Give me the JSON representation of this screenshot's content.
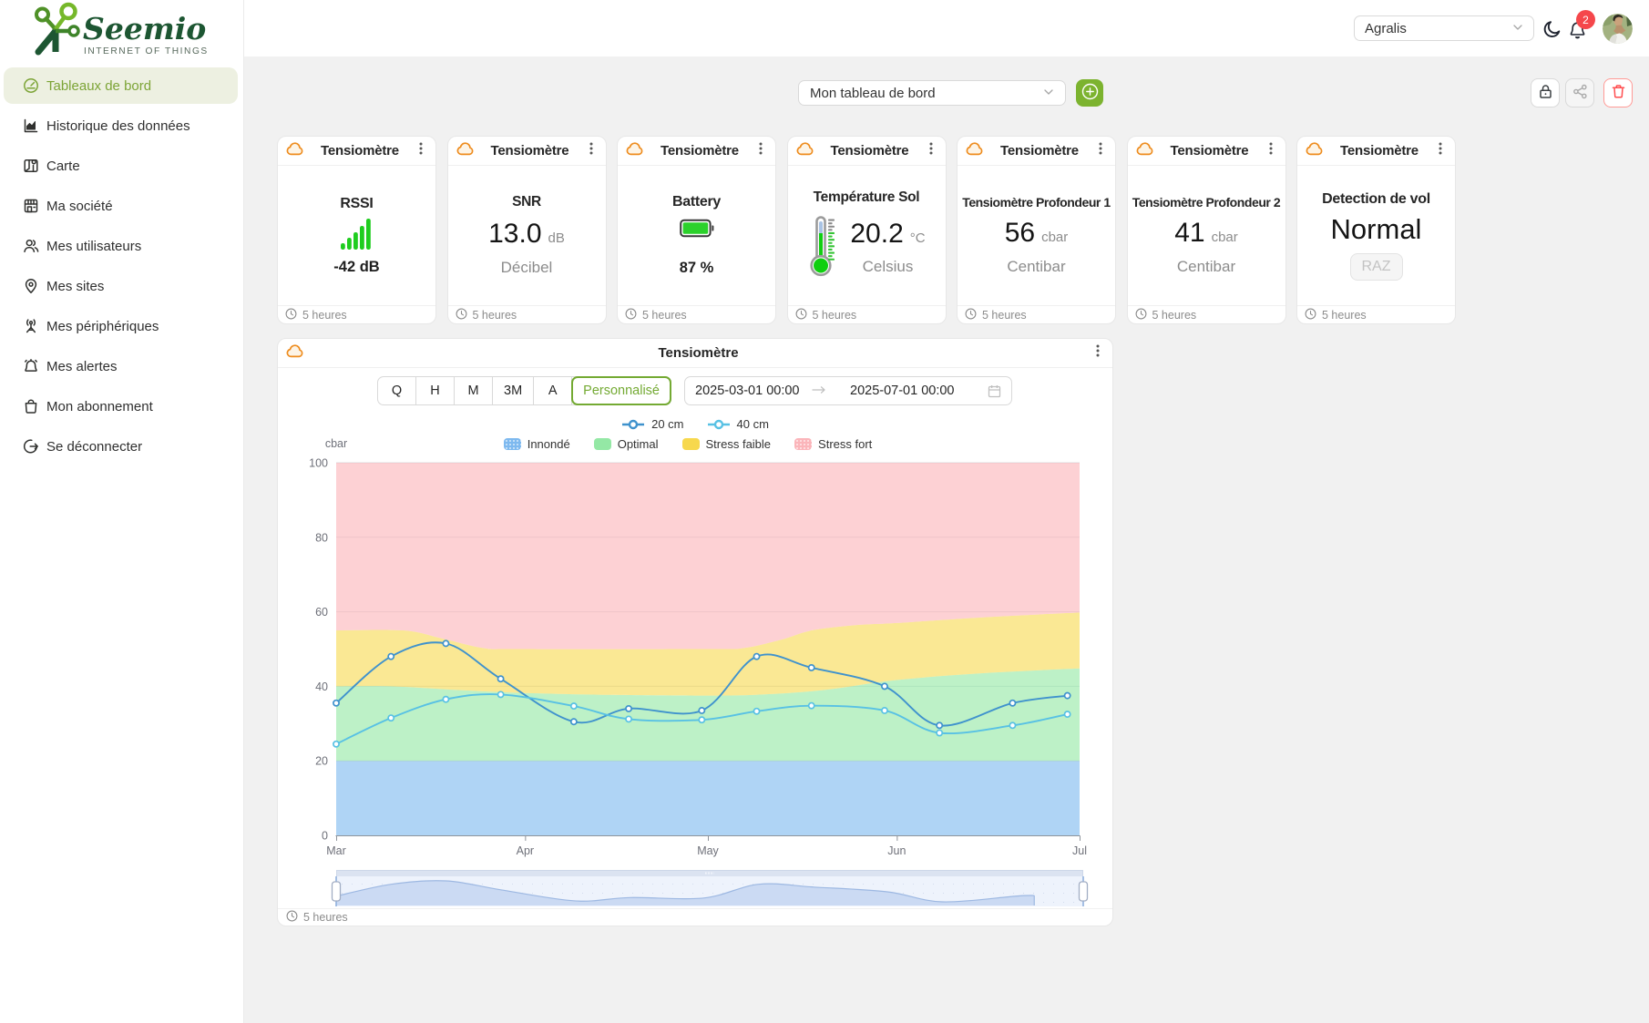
{
  "brand": {
    "name": "Seemio",
    "tagline": "INTERNET OF THINGS"
  },
  "header": {
    "org_select": {
      "value": "Agralis"
    },
    "theme_toggle_icon": "moon",
    "notifications": {
      "count": "2"
    }
  },
  "sidebar": {
    "items": [
      {
        "label": "Tableaux de bord",
        "icon": "dashboard",
        "active": true
      },
      {
        "label": "Historique des données",
        "icon": "history-chart",
        "active": false
      },
      {
        "label": "Carte",
        "icon": "map",
        "active": false
      },
      {
        "label": "Ma société",
        "icon": "company",
        "active": false
      },
      {
        "label": "Mes utilisateurs",
        "icon": "users",
        "active": false
      },
      {
        "label": "Mes sites",
        "icon": "location-pin",
        "active": false
      },
      {
        "label": "Mes périphériques",
        "icon": "devices",
        "active": false
      },
      {
        "label": "Mes alertes",
        "icon": "alert-bell",
        "active": false
      },
      {
        "label": "Mon abonnement",
        "icon": "subscription-bag",
        "active": false
      },
      {
        "label": "Se déconnecter",
        "icon": "logout",
        "active": false
      }
    ]
  },
  "toolbar": {
    "dashboard_select": {
      "value": "Mon tableau de bord"
    },
    "actions": [
      {
        "icon": "lock",
        "disabled": false,
        "danger": false
      },
      {
        "icon": "share",
        "disabled": true,
        "danger": false
      },
      {
        "icon": "trash",
        "disabled": false,
        "danger": true
      }
    ]
  },
  "cards": [
    {
      "type": "signal",
      "title": "Tensiomètre",
      "label": "RSSI",
      "value": "-42 dB",
      "icon": "signal-bars",
      "updated": "5 heures"
    },
    {
      "type": "metric",
      "title": "Tensiomètre",
      "label": "SNR",
      "value": "13.0",
      "unit": "dB",
      "sub": "Décibel",
      "updated": "5 heures"
    },
    {
      "type": "battery",
      "title": "Tensiomètre",
      "label": "Battery",
      "value": "87 %",
      "icon": "battery",
      "updated": "5 heures"
    },
    {
      "type": "temperature",
      "title": "Tensiomètre",
      "label": "Température Sol",
      "value": "20.2",
      "unit": "°C",
      "sub": "Celsius",
      "icon": "thermometer",
      "updated": "5 heures"
    },
    {
      "type": "metric",
      "title": "Tensiomètre",
      "label": "Tensiomètre Profondeur 1",
      "value": "56",
      "unit": "cbar",
      "sub": "Centibar",
      "updated": "5 heures"
    },
    {
      "type": "metric",
      "title": "Tensiomètre",
      "label": "Tensiomètre Profondeur 2",
      "value": "41",
      "unit": "cbar",
      "sub": "Centibar",
      "updated": "5 heures"
    },
    {
      "type": "status",
      "title": "Tensiomètre",
      "label": "Detection de vol",
      "value": "Normal",
      "button_label": "RAZ",
      "updated": "5 heures"
    }
  ],
  "chart_widget": {
    "title": "Tensiomètre",
    "updated": "5 heures",
    "range_buttons": [
      "Q",
      "H",
      "M",
      "3M",
      "A",
      "Personnalisé"
    ],
    "selected_range": "Personnalisé",
    "date_from": "2025-03-01 00:00",
    "date_to": "2025-07-01 00:00",
    "chart_data": {
      "type": "line",
      "ylabel": "cbar",
      "ylim": [
        0,
        100
      ],
      "yticks": [
        0,
        20,
        40,
        60,
        80,
        100
      ],
      "x_axis": {
        "start": "2025-03-01",
        "end": "2025-07-01",
        "total_days": 122,
        "tick_labels": [
          "Mar",
          "Apr",
          "May",
          "Jun",
          "Jul"
        ],
        "tick_days": [
          0,
          31,
          61,
          92,
          122
        ]
      },
      "series": [
        {
          "name": "20 cm",
          "color": "#3f92cd",
          "x_days": [
            0,
            9,
            18,
            27,
            39,
            48,
            60,
            69,
            78,
            90,
            99,
            111,
            120
          ],
          "values": [
            35.5,
            48,
            51.5,
            42,
            30.5,
            34,
            33.5,
            48,
            45,
            40,
            29.5,
            35.5,
            37.5
          ]
        },
        {
          "name": "40 cm",
          "color": "#58c1e4",
          "x_days": [
            0,
            9,
            18,
            27,
            39,
            48,
            60,
            69,
            78,
            90,
            99,
            111,
            120
          ],
          "values": [
            24.5,
            31.5,
            36.5,
            37.8,
            34.7,
            31.2,
            31,
            33.3,
            34.8,
            33.5,
            27.5,
            29.5,
            32.5
          ]
        }
      ],
      "bands": [
        {
          "name": "Innondé",
          "color": "#7eb9ef",
          "fill_opacity": 0.62,
          "decal": true,
          "top": {
            "x_days": [
              0,
              122
            ],
            "values": [
              20,
              20
            ]
          }
        },
        {
          "name": "Optimal",
          "color": "#94e8a5",
          "fill_opacity": 0.62,
          "decal": false,
          "top": {
            "x_days": [
              0,
              9,
              20,
              31,
              45,
              61,
              70,
              80,
              92,
              107,
              122
            ],
            "values": [
              40,
              40,
              39,
              38.2,
              37.7,
              37.5,
              37.8,
              39,
              41.7,
              43.6,
              44.8
            ]
          }
        },
        {
          "name": "Stress faible",
          "color": "#f7d84d",
          "fill_opacity": 0.6,
          "decal": false,
          "top": {
            "x_days": [
              0,
              11,
              17,
              24,
              30,
              61,
              67,
              73,
              78,
              85,
              92,
              107,
              122
            ],
            "values": [
              55,
              55,
              53,
              50.3,
              50,
              50,
              50.3,
              52.5,
              55,
              56.4,
              57,
              58.6,
              59.8
            ]
          }
        },
        {
          "name": "Stress fort",
          "color": "#fbb5ba",
          "fill_opacity": 0.62,
          "decal": true,
          "top": {
            "x_days": [
              0,
              122
            ],
            "values": [
              100,
              100
            ]
          }
        }
      ],
      "navigator": {
        "silhouette_series": "20 cm",
        "drop_day": 114
      }
    }
  }
}
